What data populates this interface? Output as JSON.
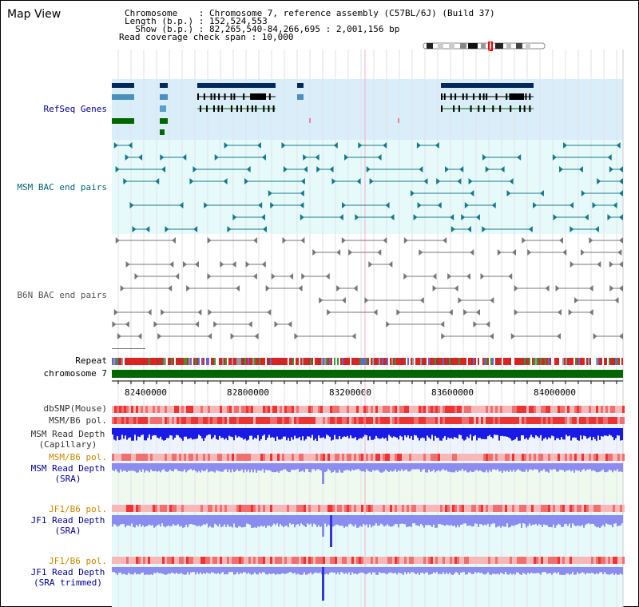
{
  "header": {
    "title": "Map View",
    "chromosome_line": "Chromosome    : Chromosome 7, reference assembly (C57BL/6J) (Build 37)",
    "length_line": "Length (b.p.) : 152,524,553",
    "show_line": "  Show (b.p.) : 82,265,540-84,266,695 : 2,001,156 bp",
    "coverage_line": "Read coverage check span : 10,000"
  },
  "tracks": {
    "refseq": "RefSeq Genes",
    "msm_bac": "MSM BAC end pairs",
    "b6n_bac": "B6N BAC end pairs",
    "repeat": "Repeat",
    "chromosome": "chromosome 7",
    "dbsnp": "dbSNP(Mouse)",
    "msm_b6_pol": "MSM/B6 pol.",
    "msm_read_depth_cap_1": "MSM Read Depth",
    "msm_read_depth_cap_2": "(Capillary)",
    "msm_b6_pol_2": "MSM/B6 pol.",
    "msm_read_depth_sra_1": "MSM Read Depth",
    "msm_read_depth_sra_2": "(SRA)",
    "jf1_b6_pol": "JF1/B6 pol.",
    "jf1_read_depth_sra_1": "JF1 Read Depth",
    "jf1_read_depth_sra_2": "(SRA)",
    "jf1_b6_pol_2": "JF1/B6 pol.",
    "jf1_read_depth_trim_1": "JF1 Read Depth",
    "jf1_read_depth_trim_2": "(SRA trimmed)"
  },
  "axis": {
    "ticks": [
      "82400000",
      "82800000",
      "83200000",
      "83600000",
      "84000000"
    ]
  },
  "colors": {
    "refseq_bg": "#d9eef8",
    "msm_bg": "#e6fafa",
    "b6n_bg": "#ffffff",
    "pol_red": "#ee3333",
    "pol_pink": "#f8b8b8",
    "depth_blue": "#1a1ae6",
    "depth_light_blue": "#8b8bf0",
    "chromosome_green": "#006600",
    "label_blue": "#000099",
    "label_teal": "#006677",
    "label_orange": "#cc8800"
  }
}
